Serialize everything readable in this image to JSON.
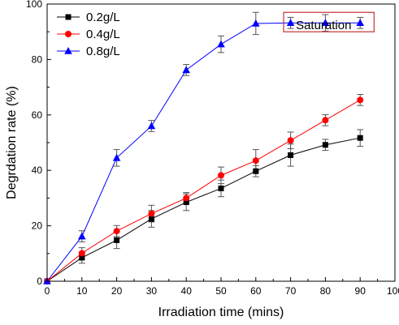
{
  "chart_data": {
    "type": "line",
    "xlabel": "Irradiation time (mins)",
    "ylabel": "Degrdation rate (%)",
    "xlim": [
      0,
      100
    ],
    "ylim": [
      0,
      100
    ],
    "xticks": [
      0,
      10,
      20,
      30,
      40,
      50,
      60,
      70,
      80,
      90,
      100
    ],
    "yticks": [
      0,
      20,
      40,
      60,
      80,
      100
    ],
    "x": [
      0,
      10,
      20,
      30,
      40,
      50,
      60,
      70,
      80,
      90
    ],
    "legend_position": "top-left",
    "grid": false,
    "series": [
      {
        "name": "0.2g/L",
        "color": "#000000",
        "marker": "square",
        "values": [
          0,
          8.5,
          14.8,
          22.5,
          28.5,
          33.5,
          39.7,
          45.5,
          49.2,
          51.7
        ],
        "errors": [
          0,
          2.0,
          3.0,
          3.0,
          3.0,
          3.0,
          2.0,
          4.0,
          2.0,
          3.0
        ]
      },
      {
        "name": "0.4g/L",
        "color": "#ff0000",
        "marker": "circle",
        "values": [
          0,
          10.1,
          18.1,
          24.4,
          30.0,
          38.2,
          43.5,
          50.8,
          58.1,
          65.4
        ],
        "errors": [
          0,
          2.0,
          2.0,
          3.0,
          2.0,
          3.0,
          4.0,
          3.0,
          2.0,
          2.0
        ]
      },
      {
        "name": "0.8g/L",
        "color": "#0000ff",
        "marker": "triangle",
        "values": [
          0,
          16.2,
          44.5,
          56.0,
          76.2,
          85.5,
          93.0,
          93.2,
          93.2,
          93.2
        ],
        "errors": [
          0,
          2.0,
          3.0,
          2.0,
          2.0,
          3.0,
          4.0,
          2.0,
          3.0,
          2.0
        ]
      }
    ],
    "annotation": {
      "text": "Saturation",
      "box_color": "#c83232",
      "x_range": [
        68,
        94
      ],
      "y_range": [
        90,
        97
      ]
    }
  }
}
